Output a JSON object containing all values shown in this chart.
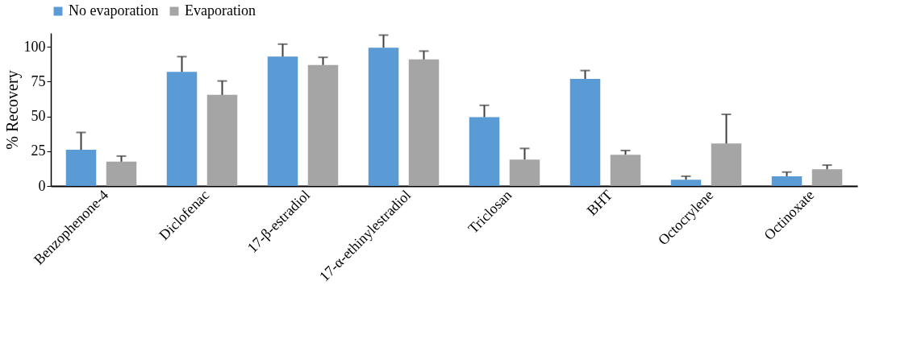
{
  "chart_data": {
    "type": "bar",
    "ylabel": "% Recovery",
    "categories": [
      "Benzophenone-4",
      "Diclofenac",
      "17-β-estradiol",
      "17-α-ethinylestradiol",
      "Triclosan",
      "BHT",
      "Octocrylene",
      "Octinoxate"
    ],
    "series": [
      {
        "name": "No evaporation",
        "color": "#5b9bd5",
        "values": [
          26,
          82,
          93,
          99.5,
          49.5,
          77,
          4.5,
          7
        ],
        "errors": [
          [
            26,
            38.5
          ],
          [
            82,
            93
          ],
          [
            93,
            102
          ],
          [
            99.5,
            108.5
          ],
          [
            49.5,
            58
          ],
          [
            77,
            83
          ],
          [
            4.5,
            7
          ],
          [
            7,
            10
          ]
        ]
      },
      {
        "name": "Evaporation",
        "color": "#a5a5a5",
        "values": [
          17.5,
          65.5,
          87,
          91,
          19,
          22.5,
          30.5,
          12
        ],
        "errors": [
          [
            17.5,
            21.5
          ],
          [
            65.5,
            75.5
          ],
          [
            87,
            92.5
          ],
          [
            91,
            97
          ],
          [
            19,
            27
          ],
          [
            22.5,
            25.5
          ],
          [
            30.5,
            51.5
          ],
          [
            12,
            15
          ]
        ]
      }
    ],
    "ylim": [
      0,
      110
    ],
    "yticks": [
      0,
      25,
      50,
      75,
      100
    ],
    "grid": false,
    "legend": "top"
  }
}
